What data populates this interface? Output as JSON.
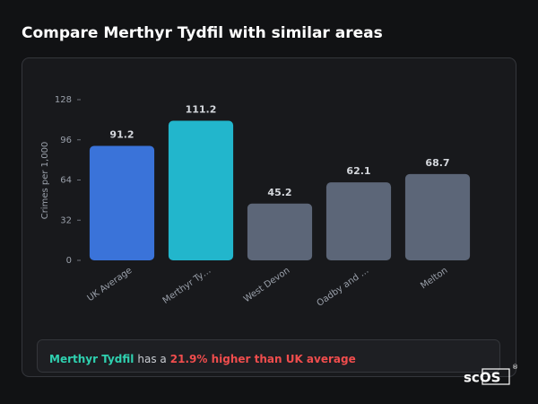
{
  "chart_data": {
    "type": "bar",
    "title": "Compare Merthyr Tydfil with similar areas",
    "y_label": "Crimes per 1,000",
    "categories": [
      "UK Average",
      "Merthyr Ty…",
      "West Devon",
      "Oadby and …",
      "Melton"
    ],
    "values": [
      91.2,
      111.2,
      45.2,
      62.1,
      68.7
    ],
    "colors": [
      "#3a73d9",
      "#22b6cc",
      "#5c6678",
      "#5c6678",
      "#5c6678"
    ],
    "ylim": [
      0,
      128
    ],
    "yticks": [
      0,
      32,
      64,
      96,
      128
    ],
    "grid": false
  },
  "summary": {
    "area": "Merthyr Tydfil",
    "text": "has a",
    "highlight": "21.9% higher than UK average"
  },
  "logo": {
    "text": "scOS",
    "mark": "®"
  }
}
